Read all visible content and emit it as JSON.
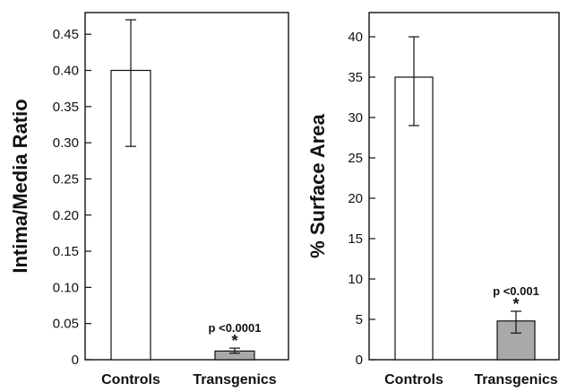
{
  "chart_data": [
    {
      "type": "bar",
      "categories": [
        "Controls",
        "Transgenics"
      ],
      "values": [
        0.4,
        0.012
      ],
      "error_low": [
        0.295,
        0.009
      ],
      "error_high": [
        0.47,
        0.016
      ],
      "ylabel": "Intima/Media Ratio",
      "ylim": [
        0,
        0.48
      ],
      "yticks": [
        "0",
        "0.05",
        "0.10",
        "0.15",
        "0.20",
        "0.25",
        "0.30",
        "0.35",
        "0.40",
        "0.45"
      ],
      "ytick_values": [
        0,
        0.05,
        0.1,
        0.15,
        0.2,
        0.25,
        0.3,
        0.35,
        0.4,
        0.45
      ],
      "annotation": "p <0.0001",
      "significance_mark": "*",
      "bar_colors": [
        "#ffffff",
        "#a9a9a9"
      ],
      "grid": false
    },
    {
      "type": "bar",
      "categories": [
        "Controls",
        "Transgenics"
      ],
      "values": [
        35,
        4.8
      ],
      "error_low": [
        29,
        3.3
      ],
      "error_high": [
        40,
        6.0
      ],
      "ylabel": "% Surface Area",
      "ylim": [
        0,
        43
      ],
      "yticks": [
        "0",
        "5",
        "10",
        "15",
        "20",
        "25",
        "30",
        "35",
        "40"
      ],
      "ytick_values": [
        0,
        5,
        10,
        15,
        20,
        25,
        30,
        35,
        40
      ],
      "annotation": "p <0.001",
      "significance_mark": "*",
      "bar_colors": [
        "#ffffff",
        "#a9a9a9"
      ],
      "grid": false
    }
  ]
}
